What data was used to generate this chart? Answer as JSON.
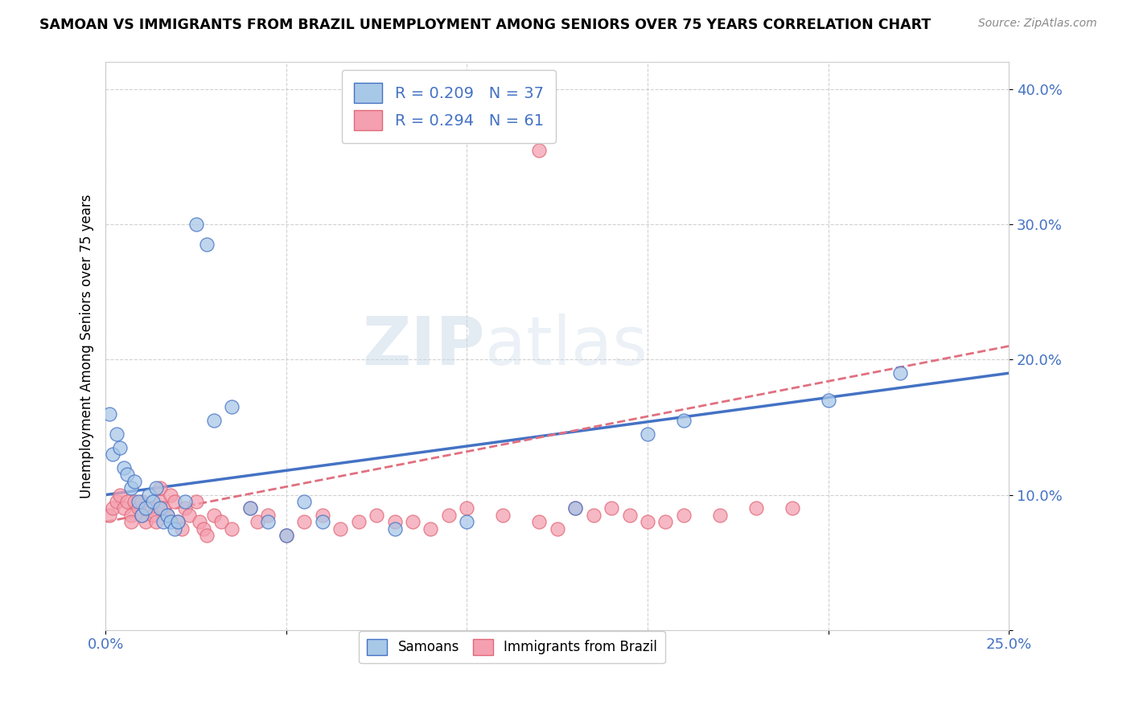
{
  "title": "SAMOAN VS IMMIGRANTS FROM BRAZIL UNEMPLOYMENT AMONG SENIORS OVER 75 YEARS CORRELATION CHART",
  "source": "Source: ZipAtlas.com",
  "ylabel": "Unemployment Among Seniors over 75 years",
  "xlim": [
    0.0,
    0.25
  ],
  "ylim": [
    0.0,
    0.42
  ],
  "xticks": [
    0.0,
    0.05,
    0.1,
    0.15,
    0.2,
    0.25
  ],
  "yticks": [
    0.0,
    0.1,
    0.2,
    0.3,
    0.4
  ],
  "samoans_color": "#A8C8E8",
  "brazil_color": "#F4A0B0",
  "samoans_edge_color": "#4472C4",
  "brazil_edge_color": "#E06878",
  "samoans_line_color": "#4472C4",
  "brazil_line_color": "#E07080",
  "R_samoans": 0.209,
  "N_samoans": 37,
  "R_brazil": 0.294,
  "N_brazil": 61,
  "samoans_x": [
    0.001,
    0.002,
    0.003,
    0.004,
    0.005,
    0.006,
    0.007,
    0.008,
    0.009,
    0.01,
    0.011,
    0.012,
    0.013,
    0.014,
    0.015,
    0.016,
    0.017,
    0.018,
    0.019,
    0.02,
    0.022,
    0.025,
    0.028,
    0.03,
    0.035,
    0.04,
    0.045,
    0.05,
    0.055,
    0.06,
    0.08,
    0.1,
    0.13,
    0.15,
    0.16,
    0.2,
    0.22
  ],
  "samoans_y": [
    0.16,
    0.13,
    0.145,
    0.135,
    0.12,
    0.115,
    0.105,
    0.11,
    0.095,
    0.085,
    0.09,
    0.1,
    0.095,
    0.105,
    0.09,
    0.08,
    0.085,
    0.08,
    0.075,
    0.08,
    0.095,
    0.3,
    0.285,
    0.155,
    0.165,
    0.09,
    0.08,
    0.07,
    0.095,
    0.08,
    0.075,
    0.08,
    0.09,
    0.145,
    0.155,
    0.17,
    0.19
  ],
  "brazil_x": [
    0.001,
    0.002,
    0.003,
    0.004,
    0.005,
    0.006,
    0.007,
    0.007,
    0.008,
    0.009,
    0.01,
    0.01,
    0.011,
    0.012,
    0.013,
    0.014,
    0.015,
    0.015,
    0.016,
    0.017,
    0.018,
    0.019,
    0.02,
    0.021,
    0.022,
    0.023,
    0.025,
    0.026,
    0.027,
    0.028,
    0.03,
    0.032,
    0.035,
    0.04,
    0.042,
    0.045,
    0.05,
    0.055,
    0.06,
    0.065,
    0.07,
    0.075,
    0.08,
    0.085,
    0.09,
    0.095,
    0.1,
    0.11,
    0.12,
    0.125,
    0.13,
    0.135,
    0.14,
    0.145,
    0.15,
    0.155,
    0.16,
    0.17,
    0.18,
    0.19,
    0.12
  ],
  "brazil_y": [
    0.085,
    0.09,
    0.095,
    0.1,
    0.09,
    0.095,
    0.085,
    0.08,
    0.095,
    0.09,
    0.085,
    0.095,
    0.08,
    0.09,
    0.085,
    0.08,
    0.095,
    0.105,
    0.09,
    0.085,
    0.1,
    0.095,
    0.08,
    0.075,
    0.09,
    0.085,
    0.095,
    0.08,
    0.075,
    0.07,
    0.085,
    0.08,
    0.075,
    0.09,
    0.08,
    0.085,
    0.07,
    0.08,
    0.085,
    0.075,
    0.08,
    0.085,
    0.08,
    0.08,
    0.075,
    0.085,
    0.09,
    0.085,
    0.08,
    0.075,
    0.09,
    0.085,
    0.09,
    0.085,
    0.08,
    0.08,
    0.085,
    0.085,
    0.09,
    0.09,
    0.355
  ],
  "background_color": "#FFFFFF",
  "grid_color": "#CCCCCC"
}
